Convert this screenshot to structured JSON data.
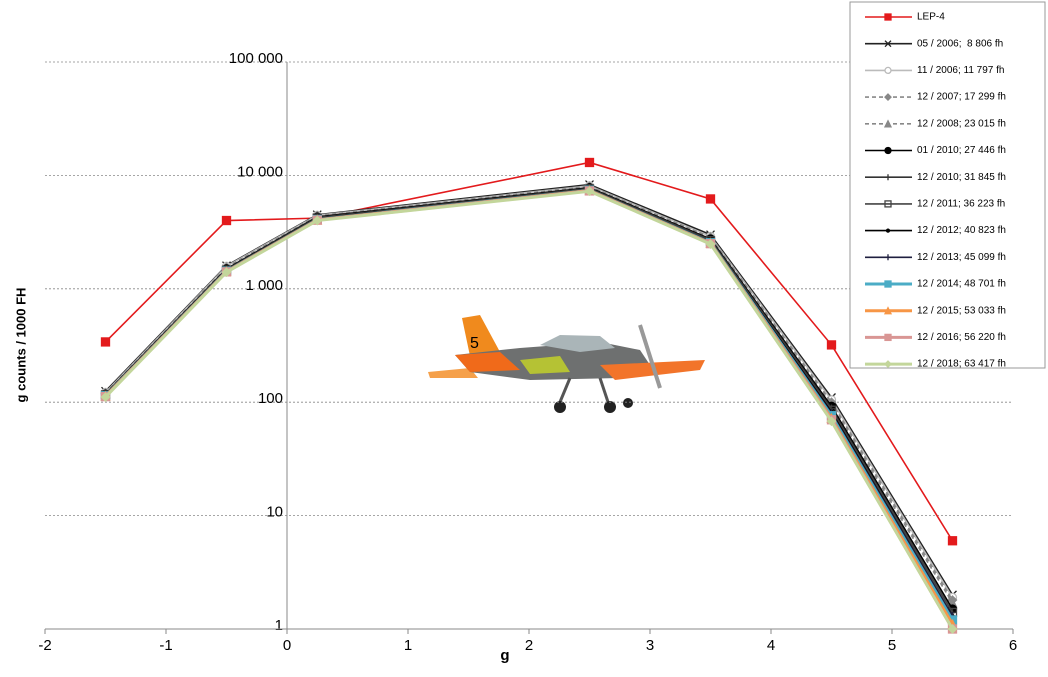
{
  "chart_data": {
    "type": "line",
    "x_label": "g",
    "y_label": "g counts / 1000 FH",
    "log_y": true,
    "grid": true,
    "legend": "top-right",
    "xlim": [
      -2,
      6
    ],
    "xticks": [
      -2,
      -1,
      0,
      1,
      2,
      3,
      4,
      5,
      6
    ],
    "ylim": [
      1,
      100000
    ],
    "yticks": [
      1,
      10,
      100,
      {
        "value": 1000,
        "label": "1 000"
      },
      {
        "value": 10000,
        "label": "10 000"
      },
      {
        "value": 100000,
        "label": "100 000"
      }
    ],
    "x": [
      -1.5,
      -0.5,
      0.25,
      2.5,
      3.5,
      4.5,
      5.5
    ],
    "series": [
      {
        "name": "LEP-4",
        "color": "#e31a1c",
        "marker": "square",
        "dash": "solid",
        "values": [
          340,
          4000,
          4200,
          13000,
          6200,
          320,
          6
        ]
      },
      {
        "name": "05 / 2006;  8 806 fh",
        "color": "#222222",
        "marker": "x",
        "dash": "solid",
        "values": [
          125,
          1600,
          4500,
          8300,
          3000,
          110,
          2.0
        ]
      },
      {
        "name": "11 / 2006; 11 797 fh",
        "color": "#bbbbbb",
        "marker": "circle",
        "dash": "solid",
        "values": [
          122,
          1580,
          4450,
          8100,
          2900,
          105,
          1.9
        ]
      },
      {
        "name": "12 / 2007; 17 299 fh",
        "color": "#888888",
        "marker": "diamond",
        "dash": "dashed",
        "values": [
          120,
          1550,
          4400,
          8000,
          2850,
          100,
          1.8
        ]
      },
      {
        "name": "12 / 2008; 23 015 fh",
        "color": "#888888",
        "marker": "triangle",
        "dash": "dashed",
        "values": [
          119,
          1530,
          4350,
          7900,
          2800,
          95,
          1.7
        ]
      },
      {
        "name": "01 / 2010; 27 446 fh",
        "color": "#000000",
        "marker": "dot",
        "dash": "solid",
        "values": [
          118,
          1500,
          4300,
          7800,
          2750,
          92,
          1.5
        ]
      },
      {
        "name": "12 / 2010; 31 845 fh",
        "color": "#333333",
        "marker": "plus",
        "dash": "solid",
        "values": [
          117,
          1480,
          4250,
          7700,
          2700,
          88,
          1.4
        ]
      },
      {
        "name": "12 / 2011; 36 223 fh",
        "color": "#444444",
        "marker": "square-open",
        "dash": "solid",
        "values": [
          116,
          1460,
          4200,
          7600,
          2650,
          85,
          1.4
        ]
      },
      {
        "name": "12 / 2012; 40 823 fh",
        "color": "#000000",
        "marker": "none",
        "dash": "solid",
        "values": [
          115,
          1450,
          4150,
          7500,
          2600,
          82,
          1.3
        ]
      },
      {
        "name": "12 / 2013; 45 099 fh",
        "color": "#1f1f3f",
        "marker": "plus",
        "dash": "solid",
        "values": [
          115,
          1440,
          4100,
          7450,
          2580,
          80,
          1.3
        ]
      },
      {
        "name": "12 / 2014; 48 701 fh",
        "color": "#4bacc6",
        "marker": "square",
        "dash": "solid",
        "values": [
          114,
          1430,
          4080,
          7400,
          2550,
          76,
          1.2
        ]
      },
      {
        "name": "12 / 2015; 53 033 fh",
        "color": "#f79646",
        "marker": "triangle",
        "dash": "solid",
        "values": [
          113,
          1420,
          4050,
          7350,
          2520,
          72,
          1.1
        ]
      },
      {
        "name": "12 / 2016; 56 220 fh",
        "color": "#d99694",
        "marker": "square",
        "dash": "solid",
        "values": [
          112,
          1410,
          4030,
          7300,
          2500,
          70,
          1.0
        ]
      },
      {
        "name": "12 / 2018; 63 417 fh",
        "color": "#c3d69b",
        "marker": "diamond",
        "dash": "solid",
        "values": [
          111,
          1400,
          4000,
          7250,
          2480,
          68,
          1.0
        ]
      }
    ]
  }
}
